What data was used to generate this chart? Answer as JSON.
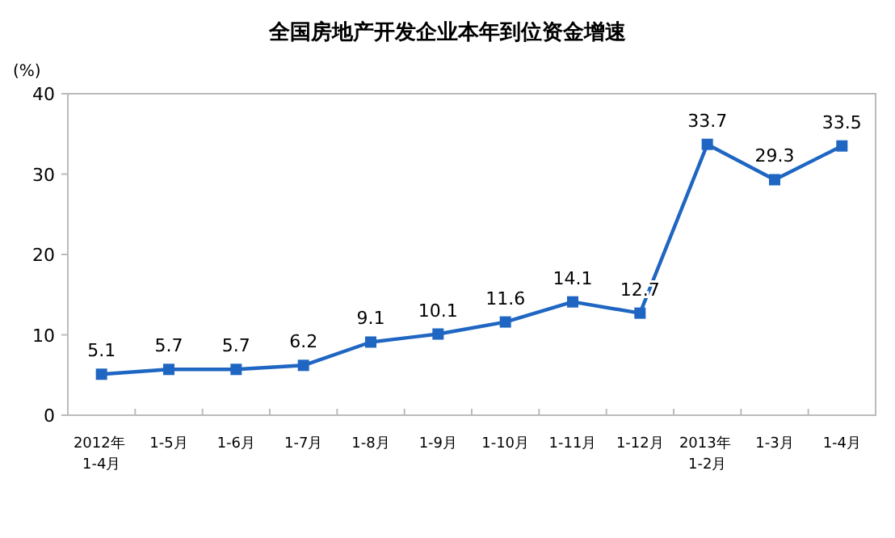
{
  "chart_data": {
    "type": "line",
    "title": "全国房地产开发企业本年到位资金增速",
    "ylabel": "(%)",
    "categories": [
      "2012年 1-4月",
      "1-5月",
      "1-6月",
      "1-7月",
      "1-8月",
      "1-9月",
      "1-10月",
      "1-11月",
      "1-12月",
      "2013年 1-2月",
      "1-3月",
      "1-4月"
    ],
    "series": [
      {
        "color": "#1f66c2",
        "values": [
          5.1,
          5.7,
          5.7,
          6.2,
          9.1,
          10.1,
          11.6,
          14.1,
          12.7,
          33.7,
          29.3,
          33.5
        ]
      }
    ],
    "ylim": [
      0,
      40
    ],
    "yticks": [
      0,
      10,
      20,
      30,
      40
    ],
    "grid": false,
    "marker": "square",
    "line_style": "solid",
    "data_labels": true
  }
}
